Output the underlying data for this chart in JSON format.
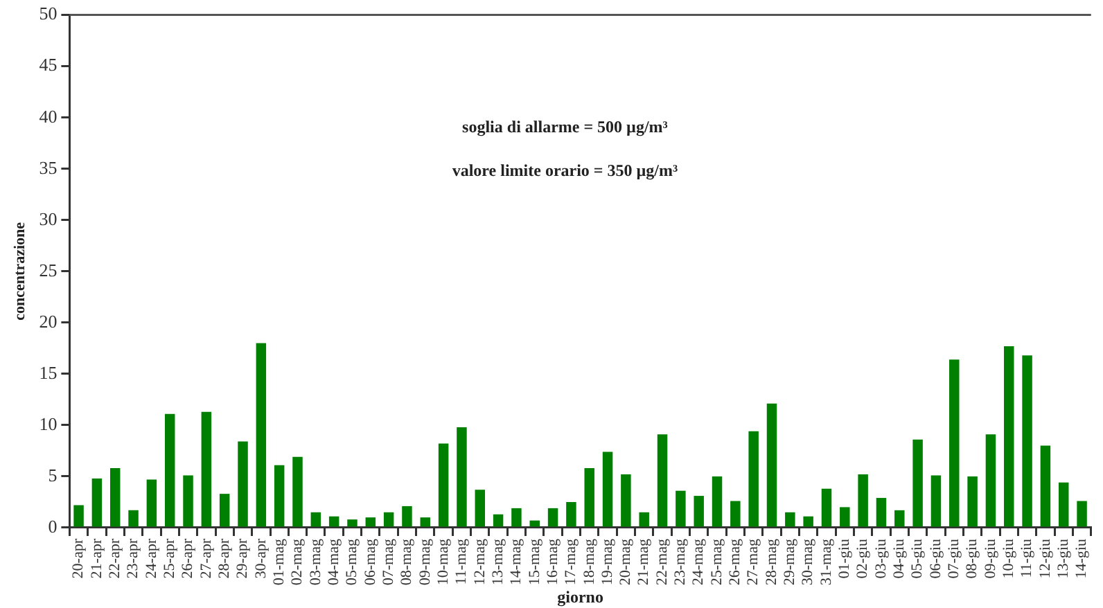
{
  "chart_data": {
    "type": "bar",
    "categories": [
      "20-apr",
      "21-apr",
      "22-apr",
      "23-apr",
      "24-apr",
      "25-apr",
      "26-apr",
      "27-apr",
      "28-apr",
      "29-apr",
      "30-apr",
      "01-mag",
      "02-mag",
      "03-mag",
      "04-mag",
      "05-mag",
      "06-mag",
      "07-mag",
      "08-mag",
      "09-mag",
      "10-mag",
      "11-mag",
      "12-mag",
      "13-mag",
      "14-mag",
      "15-mag",
      "16-mag",
      "17-mag",
      "18-mag",
      "19-mag",
      "20-mag",
      "21-mag",
      "22-mag",
      "23-mag",
      "24-mag",
      "25-mag",
      "26-mag",
      "27-mag",
      "28-mag",
      "29-mag",
      "30-mag",
      "31-mag",
      "01-giu",
      "02-giu",
      "03-giu",
      "04-giu",
      "05-giu",
      "06-giu",
      "07-giu",
      "08-giu",
      "09-giu",
      "10-giu",
      "11-giu",
      "12-giu",
      "13-giu",
      "14-giu"
    ],
    "values": [
      2.2,
      4.8,
      5.8,
      1.7,
      4.7,
      11.1,
      5.1,
      11.3,
      3.3,
      8.4,
      18.0,
      6.1,
      6.9,
      1.5,
      1.1,
      0.8,
      1.0,
      1.5,
      2.1,
      1.0,
      8.2,
      9.8,
      3.7,
      1.3,
      1.9,
      0.7,
      1.9,
      2.5,
      5.8,
      7.4,
      5.2,
      1.5,
      9.1,
      3.6,
      3.1,
      5.0,
      2.6,
      9.4,
      12.1,
      1.5,
      1.1,
      3.8,
      2.0,
      5.2,
      2.9,
      1.7,
      8.6,
      5.1,
      16.4,
      5.0,
      9.1,
      17.7,
      16.8,
      8.0,
      4.4,
      2.6
    ],
    "color": "#008000",
    "xlabel": "giorno",
    "ylabel": "concentrazione",
    "ylim": [
      0,
      50
    ],
    "yticks": [
      0,
      5,
      10,
      15,
      20,
      25,
      30,
      35,
      40,
      45,
      50
    ],
    "grid": false,
    "annotations": [
      "soglia di allarme = 500 µg/m³",
      "valore limite orario = 350 µg/m³"
    ]
  }
}
